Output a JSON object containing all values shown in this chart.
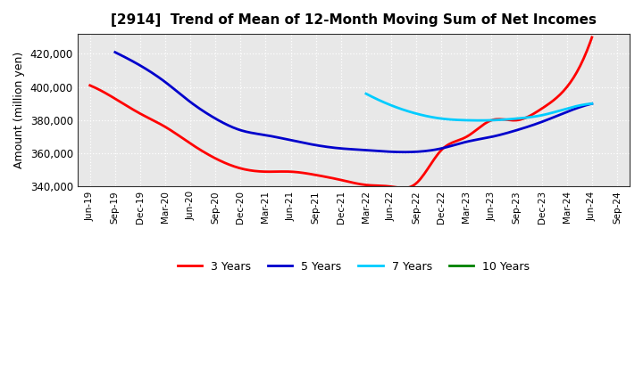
{
  "title": "[2914]  Trend of Mean of 12-Month Moving Sum of Net Incomes",
  "ylabel": "Amount (million yen)",
  "ylim": [
    340000,
    432000
  ],
  "yticks": [
    340000,
    360000,
    380000,
    400000,
    420000
  ],
  "background_color": "#ffffff",
  "plot_bg_color": "#e8e8e8",
  "grid_color": "#ffffff",
  "x_labels": [
    "Jun-19",
    "Sep-19",
    "Dec-19",
    "Mar-20",
    "Jun-20",
    "Sep-20",
    "Dec-20",
    "Mar-21",
    "Jun-21",
    "Sep-21",
    "Dec-21",
    "Mar-22",
    "Jun-22",
    "Sep-22",
    "Dec-22",
    "Mar-23",
    "Jun-23",
    "Sep-23",
    "Dec-23",
    "Mar-24",
    "Jun-24",
    "Sep-24"
  ],
  "series": {
    "3 Years": {
      "color": "#ff0000",
      "data_x": [
        0,
        1,
        2,
        3,
        4,
        5,
        6,
        7,
        8,
        9,
        10,
        11,
        12,
        13,
        14,
        15,
        16,
        17,
        18,
        19,
        20
      ],
      "data_y": [
        401000,
        393000,
        384000,
        376000,
        366000,
        357000,
        351000,
        349000,
        349000,
        347000,
        344000,
        341000,
        340000,
        342000,
        362000,
        370000,
        380000,
        380000,
        387000,
        400000,
        430000
      ]
    },
    "5 Years": {
      "color": "#0000cc",
      "data_x": [
        1,
        2,
        3,
        4,
        5,
        6,
        7,
        8,
        9,
        10,
        11,
        12,
        13,
        14,
        15,
        16,
        17,
        18,
        19,
        20
      ],
      "data_y": [
        421000,
        413000,
        403000,
        391000,
        381000,
        374000,
        371000,
        368000,
        365000,
        363000,
        362000,
        361000,
        361000,
        363000,
        367000,
        370000,
        374000,
        379000,
        385000,
        390000
      ]
    },
    "7 Years": {
      "color": "#00ccff",
      "data_x": [
        11,
        12,
        13,
        14,
        15,
        16,
        17,
        18,
        19,
        20
      ],
      "data_y": [
        396000,
        389000,
        384000,
        381000,
        380000,
        380000,
        381000,
        383000,
        387000,
        390000
      ]
    },
    "10 Years": {
      "color": "#008000",
      "data_x": [],
      "data_y": []
    }
  },
  "legend_entries": [
    "3 Years",
    "5 Years",
    "7 Years",
    "10 Years"
  ],
  "legend_colors": [
    "#ff0000",
    "#0000cc",
    "#00ccff",
    "#008000"
  ]
}
